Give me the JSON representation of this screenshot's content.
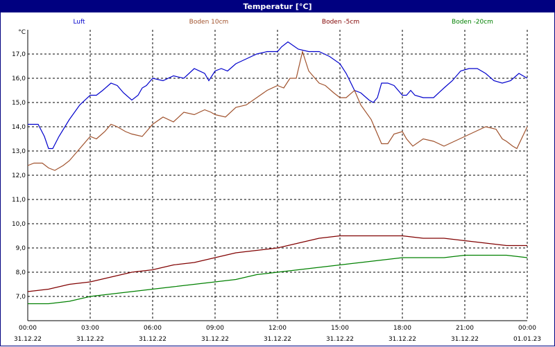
{
  "title": "Temperatur [°C]",
  "chart_data": {
    "type": "line",
    "title": "Temperatur [°C]",
    "ylabel": "°C",
    "ylim": [
      6.0,
      18.0
    ],
    "yticks": [
      7.0,
      8.0,
      9.0,
      10.0,
      11.0,
      12.0,
      13.0,
      14.0,
      15.0,
      16.0,
      17.0
    ],
    "ytick_labels": [
      "7,0",
      "8,0",
      "9,0",
      "10,0",
      "11,0",
      "12,0",
      "13,0",
      "14,0",
      "15,0",
      "16,0",
      "17,0"
    ],
    "xlim": [
      0,
      24
    ],
    "xticks": [
      0,
      3,
      6,
      9,
      12,
      15,
      18,
      21,
      24
    ],
    "xtick_labels": [
      {
        "time": "00:00",
        "date": "31.12.22"
      },
      {
        "time": "03:00",
        "date": "31.12.22"
      },
      {
        "time": "06:00",
        "date": "31.12.22"
      },
      {
        "time": "09:00",
        "date": "31.12.22"
      },
      {
        "time": "12:00",
        "date": "31.12.22"
      },
      {
        "time": "15:00",
        "date": "31.12.22"
      },
      {
        "time": "18:00",
        "date": "31.12.22"
      },
      {
        "time": "21:00",
        "date": "31.12.22"
      },
      {
        "time": "00:00",
        "date": "01.01.23"
      }
    ],
    "grid": true,
    "legend_position": "top",
    "series": [
      {
        "name": "Luft",
        "color": "#0000cc",
        "x": [
          0,
          0.5,
          0.8,
          1.0,
          1.2,
          1.5,
          2.0,
          2.5,
          3.0,
          3.3,
          3.6,
          4.0,
          4.3,
          4.6,
          5.0,
          5.3,
          5.5,
          5.7,
          6.0,
          6.5,
          7.0,
          7.5,
          8.0,
          8.5,
          8.7,
          9.0,
          9.3,
          9.6,
          10.0,
          10.5,
          11.0,
          11.5,
          12.0,
          12.2,
          12.5,
          13.0,
          13.5,
          14.0,
          14.5,
          15.0,
          15.3,
          15.7,
          16.0,
          16.4,
          16.6,
          16.8,
          17.0,
          17.3,
          17.6,
          18.0,
          18.2,
          18.4,
          18.6,
          19.0,
          19.5,
          20.0,
          20.4,
          20.8,
          21.2,
          21.6,
          22.0,
          22.4,
          22.8,
          23.2,
          23.6,
          24.0
        ],
        "y": [
          14.1,
          14.1,
          13.6,
          13.1,
          13.1,
          13.6,
          14.3,
          14.9,
          15.3,
          15.3,
          15.5,
          15.8,
          15.7,
          15.4,
          15.1,
          15.3,
          15.6,
          15.7,
          16.0,
          15.9,
          16.1,
          16.0,
          16.4,
          16.2,
          15.9,
          16.3,
          16.4,
          16.3,
          16.6,
          16.8,
          17.0,
          17.1,
          17.1,
          17.3,
          17.5,
          17.2,
          17.1,
          17.1,
          16.9,
          16.6,
          16.2,
          15.5,
          15.4,
          15.1,
          15.0,
          15.2,
          15.8,
          15.8,
          15.7,
          15.3,
          15.3,
          15.5,
          15.3,
          15.2,
          15.2,
          15.6,
          15.9,
          16.3,
          16.4,
          16.4,
          16.2,
          15.9,
          15.8,
          15.9,
          16.2,
          16.0
        ]
      },
      {
        "name": "Boden 10cm",
        "color": "#a0522d",
        "x": [
          0,
          0.3,
          0.7,
          1.0,
          1.3,
          1.7,
          2.0,
          2.5,
          3.0,
          3.3,
          3.7,
          4.0,
          4.3,
          4.7,
          5.0,
          5.5,
          6.0,
          6.5,
          7.0,
          7.5,
          8.0,
          8.5,
          8.8,
          9.0,
          9.5,
          10.0,
          10.5,
          11.0,
          11.5,
          12.0,
          12.3,
          12.6,
          12.9,
          13.2,
          13.5,
          14.0,
          14.3,
          14.7,
          15.0,
          15.3,
          15.7,
          16.0,
          16.5,
          16.8,
          17.0,
          17.3,
          17.6,
          18.0,
          18.2,
          18.5,
          19.0,
          19.5,
          20.0,
          20.5,
          21.0,
          21.5,
          22.0,
          22.5,
          22.8,
          23.0,
          23.3,
          23.5,
          24.0
        ],
        "y": [
          12.4,
          12.5,
          12.5,
          12.3,
          12.2,
          12.4,
          12.6,
          13.1,
          13.6,
          13.5,
          13.8,
          14.1,
          14.0,
          13.8,
          13.7,
          13.6,
          14.1,
          14.4,
          14.2,
          14.6,
          14.5,
          14.7,
          14.6,
          14.5,
          14.4,
          14.8,
          14.9,
          15.2,
          15.5,
          15.7,
          15.6,
          16.0,
          16.0,
          17.1,
          16.3,
          15.8,
          15.7,
          15.4,
          15.2,
          15.2,
          15.5,
          14.9,
          14.3,
          13.7,
          13.3,
          13.3,
          13.7,
          13.8,
          13.5,
          13.2,
          13.5,
          13.4,
          13.2,
          13.4,
          13.6,
          13.8,
          14.0,
          13.9,
          13.5,
          13.4,
          13.2,
          13.1,
          14.0
        ]
      },
      {
        "name": "Boden -5cm",
        "color": "#800000",
        "x": [
          0,
          1,
          2,
          3,
          4,
          5,
          6,
          7,
          8,
          9,
          10,
          11,
          12,
          13,
          14,
          15,
          16,
          17,
          18,
          19,
          20,
          21,
          22,
          23,
          24
        ],
        "y": [
          7.2,
          7.3,
          7.5,
          7.6,
          7.8,
          8.0,
          8.1,
          8.3,
          8.4,
          8.6,
          8.8,
          8.9,
          9.0,
          9.2,
          9.4,
          9.5,
          9.5,
          9.5,
          9.5,
          9.4,
          9.4,
          9.3,
          9.2,
          9.1,
          9.1
        ]
      },
      {
        "name": "Boden -20cm",
        "color": "#008000",
        "x": [
          0,
          1,
          2,
          3,
          4,
          5,
          6,
          7,
          8,
          9,
          10,
          11,
          12,
          13,
          14,
          15,
          16,
          17,
          18,
          19,
          20,
          21,
          22,
          23,
          24
        ],
        "y": [
          6.7,
          6.7,
          6.8,
          7.0,
          7.1,
          7.2,
          7.3,
          7.4,
          7.5,
          7.6,
          7.7,
          7.9,
          8.0,
          8.1,
          8.2,
          8.3,
          8.4,
          8.5,
          8.6,
          8.6,
          8.6,
          8.7,
          8.7,
          8.7,
          8.6
        ]
      }
    ]
  }
}
